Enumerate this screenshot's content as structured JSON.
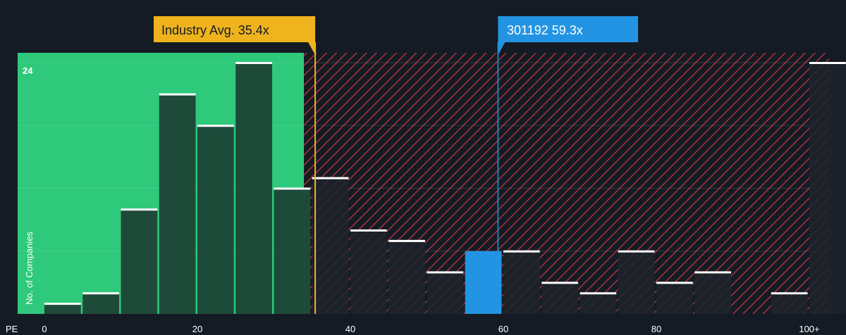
{
  "chart_data": {
    "type": "bar",
    "xlabel": "PE",
    "ylabel": "No. of Companies",
    "x_ticks": [
      "0",
      "20",
      "40",
      "60",
      "80",
      "100+"
    ],
    "x_tick_values": [
      0,
      20,
      40,
      60,
      80,
      100
    ],
    "xlim": [
      -5,
      105
    ],
    "ylim": [
      0,
      24
    ],
    "y_tick_labels": [
      "24"
    ],
    "bin_width": 5,
    "bins": [
      {
        "x": 0,
        "count": 1
      },
      {
        "x": 5,
        "count": 2
      },
      {
        "x": 10,
        "count": 10
      },
      {
        "x": 15,
        "count": 21
      },
      {
        "x": 20,
        "count": 18
      },
      {
        "x": 25,
        "count": 24
      },
      {
        "x": 30,
        "count": 12
      },
      {
        "x": 35,
        "count": 13
      },
      {
        "x": 40,
        "count": 8
      },
      {
        "x": 45,
        "count": 7
      },
      {
        "x": 50,
        "count": 4
      },
      {
        "x": 55,
        "count": 6,
        "highlight": true
      },
      {
        "x": 60,
        "count": 6
      },
      {
        "x": 65,
        "count": 3
      },
      {
        "x": 70,
        "count": 2
      },
      {
        "x": 75,
        "count": 6
      },
      {
        "x": 80,
        "count": 3
      },
      {
        "x": 85,
        "count": 4
      },
      {
        "x": 90,
        "count": 0
      },
      {
        "x": 95,
        "count": 2
      },
      {
        "x": 100,
        "count": 24
      }
    ],
    "industry_avg": {
      "label": "Industry Avg. 35.4x",
      "value": 35.4,
      "color": "#eeb31d"
    },
    "company": {
      "label": "301192 59.3x",
      "value": 59.3,
      "color": "#2394e3"
    },
    "colors": {
      "background": "#151b24",
      "fair_zone": "#2ec97a",
      "overvalued_hatch": "#c0353f",
      "bar": "#1e4a3a",
      "bar_over": "#1d232c",
      "bar_top": "#ffffff",
      "highlight_bar": "#2394e3"
    }
  }
}
